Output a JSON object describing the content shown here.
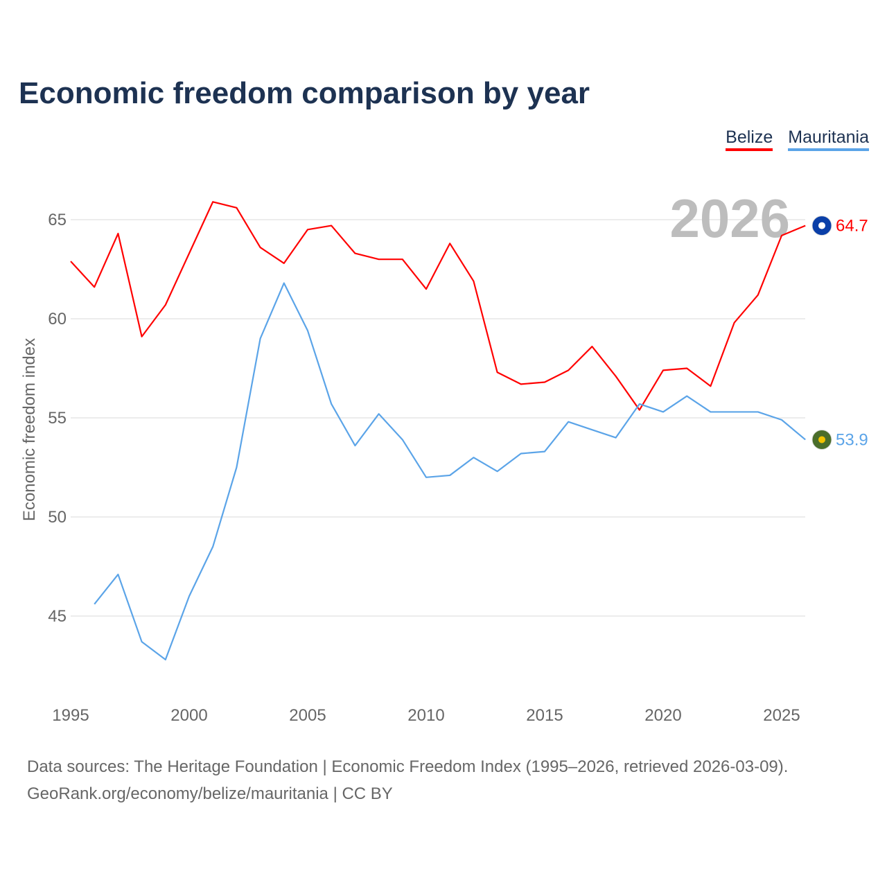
{
  "title": "Economic freedom comparison by year",
  "footer": {
    "line1": "Data sources: The Heritage Foundation | Economic Freedom Index (1995–2026, retrieved 2026-03-09).",
    "line2": "GeoRank.org/economy/belize/mauritania | CC BY"
  },
  "chart_data": {
    "type": "line",
    "title": "Economic freedom comparison by year",
    "xlabel": "",
    "ylabel": "Economic freedom index",
    "year_label": "2026",
    "xlim": [
      1995,
      2026
    ],
    "ylim": [
      41,
      68
    ],
    "x_ticks": [
      1995,
      2000,
      2005,
      2010,
      2015,
      2020,
      2025
    ],
    "y_ticks": [
      45,
      50,
      55,
      60,
      65
    ],
    "grid": true,
    "legend_position": "top-right",
    "series": [
      {
        "name": "Belize",
        "color": "#ff0000",
        "end_label": "64.7",
        "flag_color": "#0a3fa8",
        "x": [
          1995,
          1996,
          1997,
          1998,
          1999,
          2000,
          2001,
          2002,
          2003,
          2004,
          2005,
          2006,
          2007,
          2008,
          2009,
          2010,
          2011,
          2012,
          2013,
          2014,
          2015,
          2016,
          2017,
          2018,
          2019,
          2020,
          2021,
          2022,
          2023,
          2024,
          2025,
          2026
        ],
        "values": [
          62.9,
          61.6,
          64.3,
          59.1,
          60.7,
          63.3,
          65.9,
          65.6,
          63.6,
          62.8,
          64.5,
          64.7,
          63.3,
          63.0,
          63.0,
          61.5,
          63.8,
          61.9,
          57.3,
          56.7,
          56.8,
          57.4,
          58.6,
          57.1,
          55.4,
          57.4,
          57.5,
          56.6,
          59.8,
          61.2,
          64.2,
          64.7
        ]
      },
      {
        "name": "Mauritania",
        "color": "#5ba4e8",
        "end_label": "53.9",
        "flag_color": "#4a6d2a",
        "x": [
          1996,
          1997,
          1998,
          1999,
          2000,
          2001,
          2002,
          2003,
          2004,
          2005,
          2006,
          2007,
          2008,
          2009,
          2010,
          2011,
          2012,
          2013,
          2014,
          2015,
          2016,
          2017,
          2018,
          2019,
          2020,
          2021,
          2022,
          2023,
          2024,
          2025,
          2026
        ],
        "values": [
          45.6,
          47.1,
          43.7,
          42.8,
          46.0,
          48.5,
          52.5,
          59.0,
          61.8,
          59.4,
          55.7,
          53.6,
          55.2,
          53.9,
          52.0,
          52.1,
          53.0,
          52.3,
          53.2,
          53.3,
          54.8,
          54.4,
          54.0,
          55.7,
          55.3,
          56.1,
          55.3,
          55.3,
          55.3,
          54.9,
          53.9
        ]
      }
    ]
  }
}
